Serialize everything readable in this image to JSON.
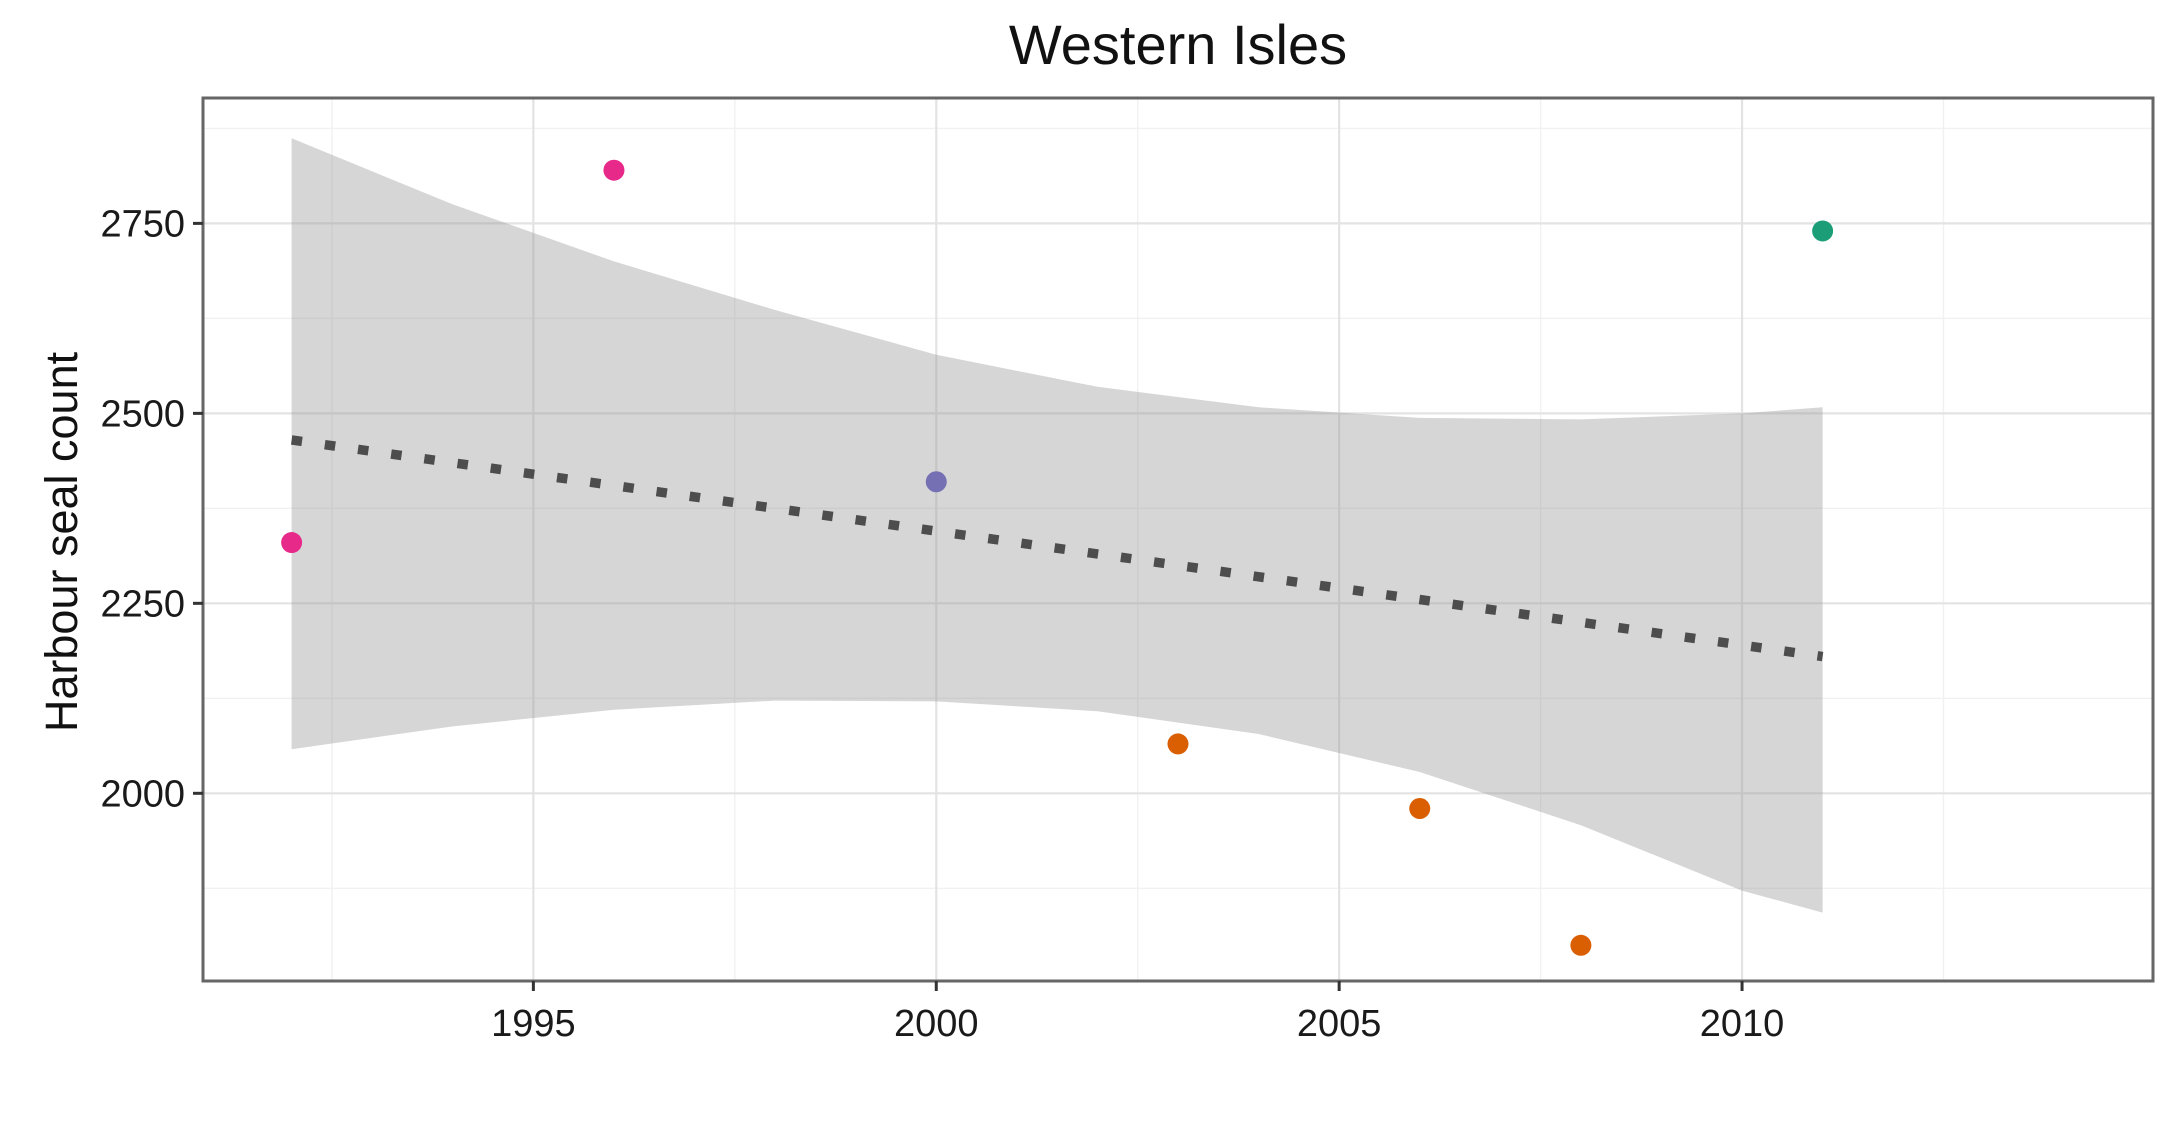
{
  "title": "Western Isles",
  "ylabel": "Harbour seal count",
  "chart_data": {
    "type": "scatter",
    "title": "Western Isles",
    "xlabel": "",
    "ylabel": "Harbour seal count",
    "xlim": [
      1990.9,
      2015.1
    ],
    "ylim": [
      1753,
      2915
    ],
    "x_ticks": [
      1995,
      2000,
      2005,
      2010
    ],
    "y_ticks": [
      2000,
      2250,
      2500,
      2750
    ],
    "x_minor_ticks": [
      1992.5,
      1997.5,
      2002.5,
      2007.5,
      2012.5
    ],
    "y_minor_ticks": [
      1875,
      2125,
      2375,
      2625,
      2875
    ],
    "grid": true,
    "legend_position": "none",
    "points": [
      {
        "x": 1992,
        "y": 2330,
        "color": "#E7298A"
      },
      {
        "x": 1996,
        "y": 2820,
        "color": "#E7298A"
      },
      {
        "x": 2000,
        "y": 2410,
        "color": "#7570B3"
      },
      {
        "x": 2003,
        "y": 2065,
        "color": "#D95F02"
      },
      {
        "x": 2006,
        "y": 1980,
        "color": "#D95F02"
      },
      {
        "x": 2008,
        "y": 1800,
        "color": "#D95F02"
      },
      {
        "x": 2011,
        "y": 2740,
        "color": "#1B9E77"
      }
    ],
    "point_radius": 10.5,
    "trend_line": {
      "style": "dotted",
      "color": "#4D4D4D",
      "x": [
        1992,
        2011
      ],
      "y": [
        2465,
        2180
      ]
    },
    "confidence_band": {
      "fill": "#999999",
      "opacity": 0.4,
      "points": [
        {
          "x": 1992,
          "lower": 2058,
          "upper": 2862
        },
        {
          "x": 1994,
          "lower": 2088,
          "upper": 2775
        },
        {
          "x": 1996,
          "lower": 2110,
          "upper": 2700
        },
        {
          "x": 1998,
          "lower": 2122,
          "upper": 2636
        },
        {
          "x": 2000,
          "lower": 2121,
          "upper": 2577
        },
        {
          "x": 2002,
          "lower": 2108,
          "upper": 2535
        },
        {
          "x": 2004,
          "lower": 2078,
          "upper": 2508
        },
        {
          "x": 2006,
          "lower": 2028,
          "upper": 2494
        },
        {
          "x": 2008,
          "lower": 1958,
          "upper": 2492
        },
        {
          "x": 2010,
          "lower": 1872,
          "upper": 2500
        },
        {
          "x": 2011,
          "lower": 1843,
          "upper": 2508
        }
      ]
    },
    "style": {
      "panel_background": "#ffffff",
      "panel_border": "#666666",
      "grid_major": "#e3e3e3",
      "grid_minor": "#f1f1f1",
      "tick_color": "#333333",
      "tick_label_color": "#1a1a1a",
      "tick_label_size": 38
    }
  }
}
